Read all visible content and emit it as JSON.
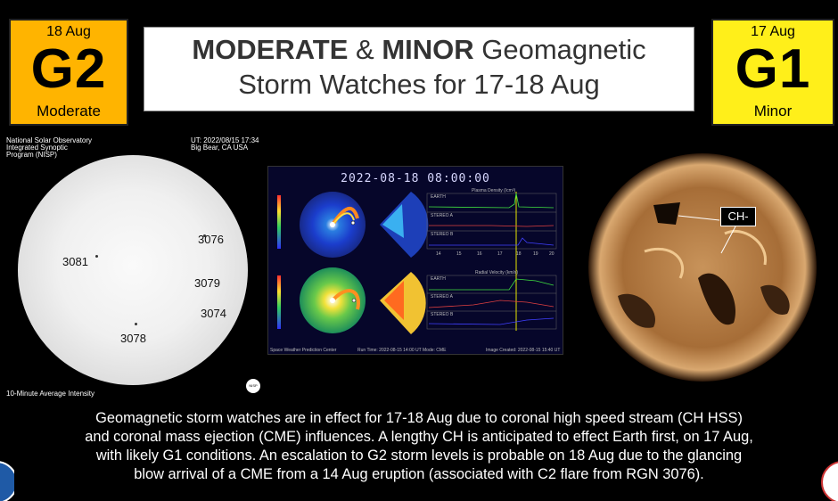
{
  "badges": {
    "left": {
      "date": "18 Aug",
      "level": "G2",
      "word": "Moderate",
      "color": "#ffb400"
    },
    "right": {
      "date": "17 Aug",
      "level": "G1",
      "word": "Minor",
      "color": "#ffef1a"
    }
  },
  "title": {
    "bold1": "MODERATE",
    "amp": " & ",
    "bold2": "MINOR",
    "rest1": " Geomagnetic",
    "line2": "Storm Watches for 17-18 Aug"
  },
  "sun_left": {
    "org_line1": "National Solar Observatory",
    "org_line2": "Integrated Synoptic",
    "org_line3": "Program (NISP)",
    "ut_line1": "UT:  2022/08/15 17:34",
    "ut_line2": "Big Bear, CA USA",
    "footer": "10-Minute Average Intensity",
    "logo_text": "NISP",
    "regions": [
      "3076",
      "3081",
      "3079",
      "3074",
      "3078"
    ]
  },
  "model": {
    "date": "2022-08-18  08:00:00",
    "footer_left": "Space Weather Prediction Center",
    "footer_mid": "Run Time: 2022-08-15 14:00 UT   Mode: CME",
    "footer_right": "Image Created: 2022-08-15 15:40 UT",
    "density_title": "Plasma Density (/cm³)",
    "velocity_title": "Radial Velocity (km/s)",
    "traces": [
      "EARTH",
      "STEREO A",
      "STEREO B",
      "EARTH",
      "STEREO A",
      "STEREO B"
    ],
    "x_ticks": [
      "14",
      "15",
      "16",
      "17",
      "18",
      "19",
      "20"
    ]
  },
  "sun_right": {
    "ch_label": "CH-"
  },
  "description": {
    "line1": "Geomagnetic storm watches are in effect for 17-18 Aug due to coronal high speed stream (CH HSS)",
    "line2": "and coronal mass ejection (CME) influences. A lengthy CH is anticipated to effect Earth first, on 17 Aug,",
    "line3": "with likely G1 conditions. An escalation to G2 storm levels is probable on 18 Aug due to the glancing",
    "line4": "blow arrival of a CME from a 14 Aug eruption (associated with C2 flare from RGN 3076)."
  },
  "icons": [
    "noaa-logo-icon",
    "nws-logo-icon"
  ]
}
